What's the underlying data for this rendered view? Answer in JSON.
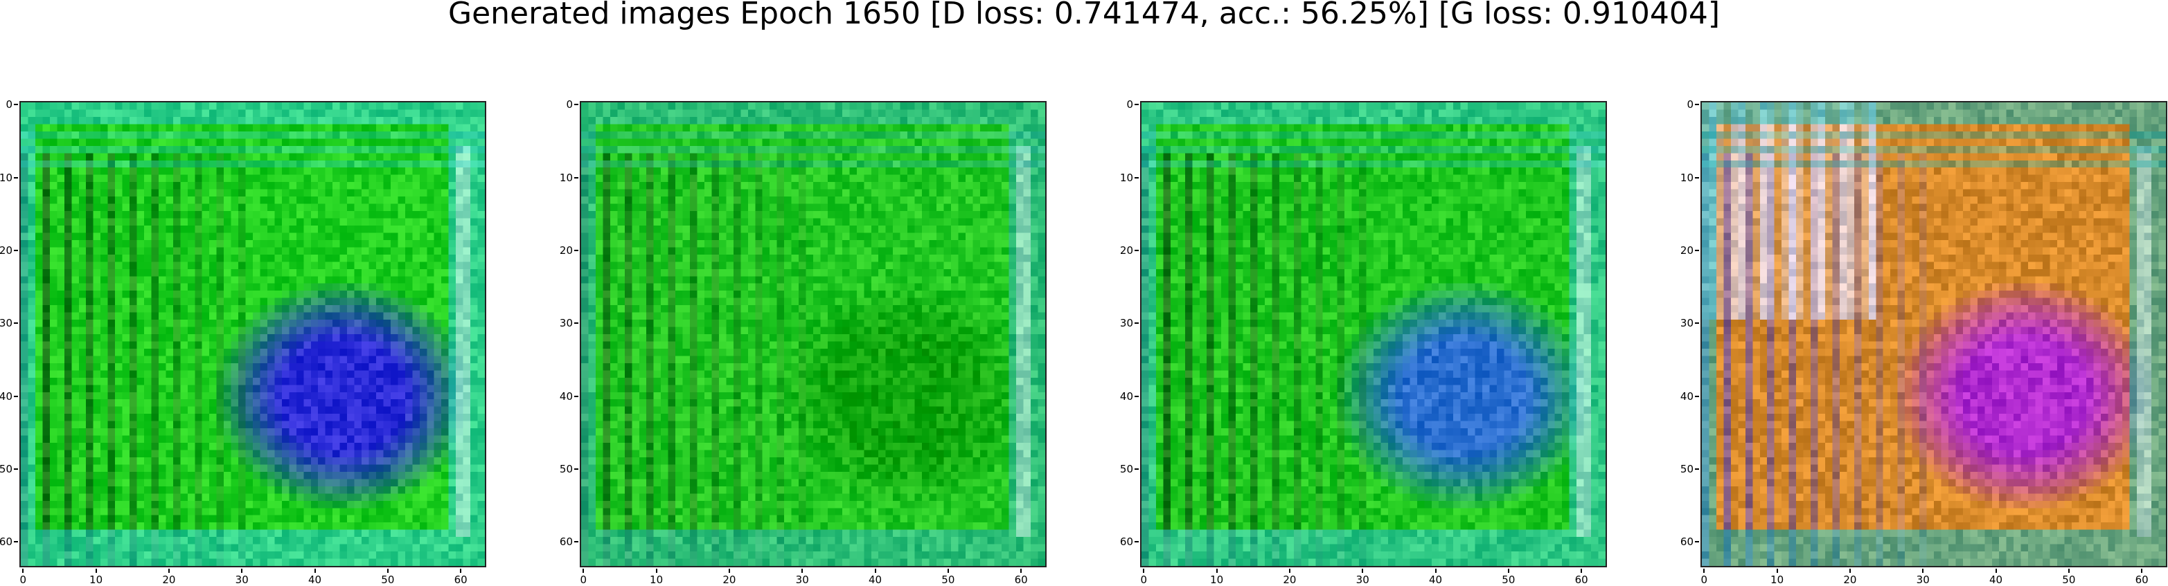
{
  "figure": {
    "title": "Generated images Epoch 1650 [D loss: 0.741474, acc.: 56.25%] [G loss: 0.910404]"
  },
  "panels": [
    {
      "x_ticks": [
        "0",
        "10",
        "20",
        "30",
        "40",
        "50",
        "60"
      ],
      "y_ticks": [
        "0",
        "10",
        "20",
        "30",
        "40",
        "50",
        "60"
      ],
      "dominant_colors": [
        "#1fcf1f",
        "#2b2bd8",
        "#0f2a0f",
        "#7a4a14",
        "#36d0d0"
      ]
    },
    {
      "x_ticks": [
        "0",
        "10",
        "20",
        "30",
        "40",
        "50",
        "60"
      ],
      "y_ticks": [
        "0",
        "10",
        "20",
        "30",
        "40",
        "50",
        "60"
      ],
      "dominant_colors": [
        "#22c822",
        "#0da60d",
        "#124a12",
        "#3c8c6a",
        "#34b8b0"
      ]
    },
    {
      "x_ticks": [
        "0",
        "10",
        "20",
        "30",
        "40",
        "50",
        "60"
      ],
      "y_ticks": [
        "0",
        "10",
        "20",
        "30",
        "40",
        "50",
        "60"
      ],
      "dominant_colors": [
        "#1fc81f",
        "#2a6ed0",
        "#103010",
        "#2e9a5a",
        "#38c8c8"
      ]
    },
    {
      "x_ticks": [
        "0",
        "10",
        "20",
        "30",
        "40",
        "50",
        "60"
      ],
      "y_ticks": [
        "0",
        "10",
        "20",
        "30",
        "40",
        "50",
        "60"
      ],
      "dominant_colors": [
        "#d88a2a",
        "#b02ad0",
        "#3a36e0",
        "#e0d8f0",
        "#20b8b8"
      ]
    }
  ]
}
